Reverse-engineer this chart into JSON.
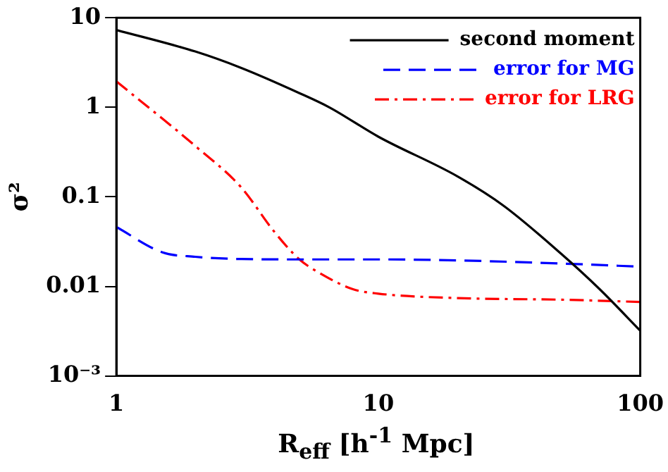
{
  "chart_data": {
    "type": "line",
    "xlabel": "R$_{eff}$ [h$^{-1}$ Mpc]",
    "ylabel": "σ²",
    "log": "xy",
    "xlim": [
      1,
      100
    ],
    "xticks": [
      1,
      10,
      100
    ],
    "ylim": [
      0.001,
      10
    ],
    "yticks": [
      {
        "value": 0.001,
        "label": "10⁻³"
      },
      0.01,
      0.1,
      1,
      10
    ],
    "grid": false,
    "legend": "top right",
    "marker": "none",
    "series": [
      {
        "name": "second moment",
        "color": "#000000",
        "line_style": "solid",
        "x": [
          1,
          2,
          3,
          5,
          6.5,
          10,
          20,
          30,
          50,
          70,
          100
        ],
        "values": [
          7.3,
          4.2,
          2.75,
          1.44,
          1.0,
          0.47,
          0.17,
          0.08,
          0.023,
          0.0093,
          0.0032
        ]
      },
      {
        "name": "error for MG",
        "color": "#0000ff",
        "line_style": "dashed",
        "x": [
          1,
          1.5,
          2,
          3,
          5,
          10,
          20,
          50,
          100
        ],
        "values": [
          0.046,
          0.024,
          0.0214,
          0.0202,
          0.02,
          0.02,
          0.0195,
          0.018,
          0.0166
        ]
      },
      {
        "name": "error for LRG",
        "color": "#ff0000",
        "line_style": "dashdot",
        "x": [
          1,
          2,
          3,
          4,
          5,
          6,
          8,
          10,
          20,
          50,
          100
        ],
        "values": [
          1.95,
          0.37,
          0.127,
          0.041,
          0.02,
          0.014,
          0.0093,
          0.0083,
          0.0074,
          0.0071,
          0.0067
        ]
      }
    ]
  }
}
